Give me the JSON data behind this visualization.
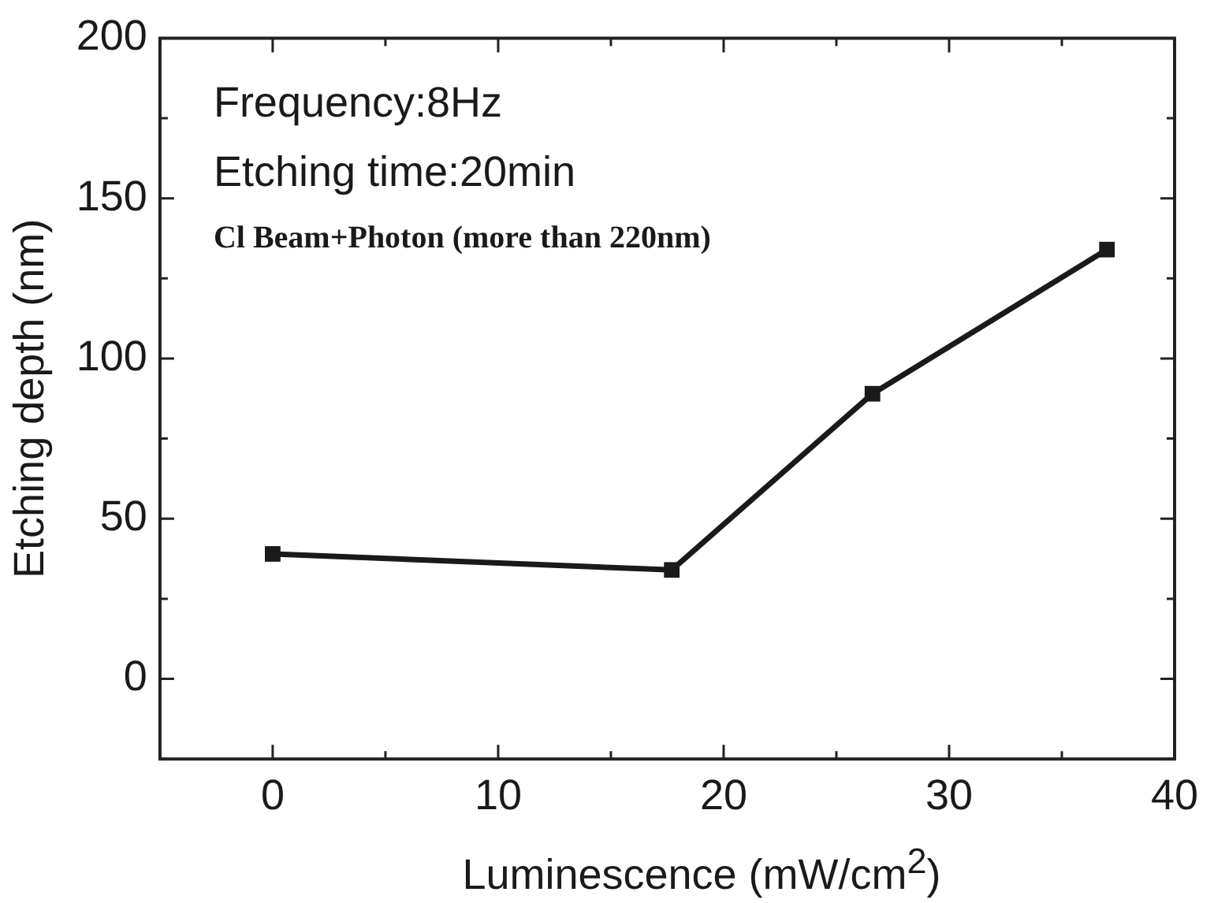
{
  "chart_data": {
    "type": "line",
    "xlabel": "Luminescence (mW/cm$^{2}$)",
    "ylabel": "Etching depth (nm)",
    "annotations": [
      "Frequency:8Hz",
      "Etching time:20min",
      "Cl Beam+Photon (more than 220nm)"
    ],
    "x": [
      0,
      17.7,
      26.6,
      37.0
    ],
    "series": [
      {
        "color": "#1a1a1a",
        "values": [
          39,
          34,
          89,
          134
        ]
      }
    ],
    "xlim": [
      -5,
      40
    ],
    "xticks": [
      {
        "value": -5,
        "label": null
      },
      0,
      {
        "value": 5,
        "label": null
      },
      10,
      {
        "value": 15,
        "label": null
      },
      20,
      {
        "value": 25,
        "label": null
      },
      30,
      {
        "value": 35,
        "label": null
      },
      40
    ],
    "ylim": [
      -25,
      200
    ],
    "yticks": [
      {
        "value": -25,
        "label": null
      },
      0,
      {
        "value": 25,
        "label": null
      },
      50,
      {
        "value": 75,
        "label": null
      },
      100,
      {
        "value": 125,
        "label": null
      },
      150,
      {
        "value": 175,
        "label": null
      },
      200
    ],
    "grid": false,
    "legend": false,
    "marker": "square",
    "line_style": "solid"
  }
}
